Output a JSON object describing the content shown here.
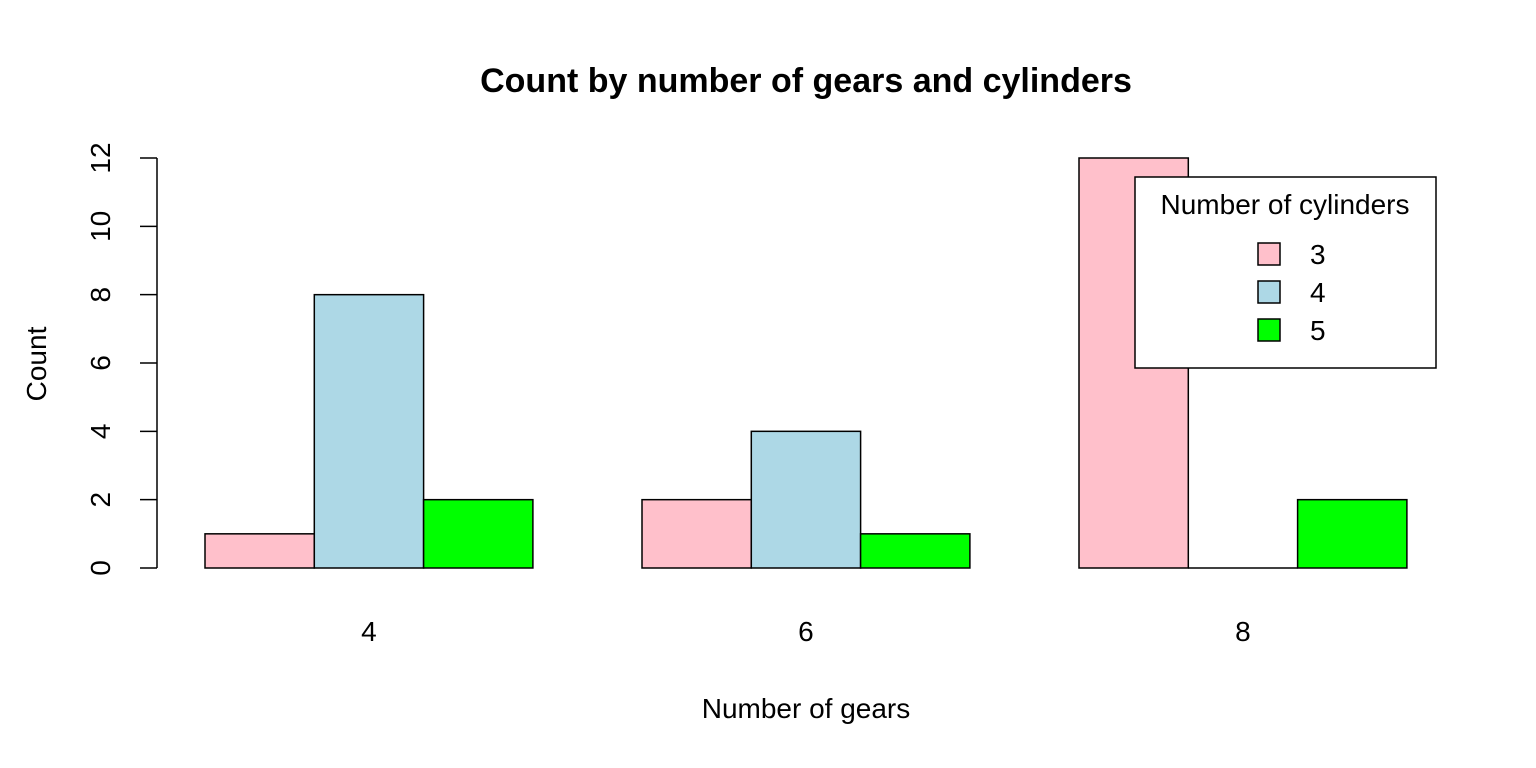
{
  "chart_data": {
    "type": "bar",
    "title": "Count by number of gears and cylinders",
    "xlabel": "Number of gears",
    "ylabel": "Count",
    "categories": [
      "4",
      "6",
      "8"
    ],
    "series": [
      {
        "name": "3",
        "values": [
          1,
          2,
          12
        ],
        "color": "#FFC0CB"
      },
      {
        "name": "4",
        "values": [
          8,
          4,
          0
        ],
        "color": "#ADD8E6"
      },
      {
        "name": "5",
        "values": [
          2,
          1,
          2
        ],
        "color": "#00FF00"
      }
    ],
    "ylim": [
      0,
      12
    ],
    "yticks": [
      "0",
      "2",
      "4",
      "6",
      "8",
      "10",
      "12"
    ],
    "grid": false,
    "legend": {
      "title": "Number of cylinders",
      "placement": "top-right"
    }
  }
}
